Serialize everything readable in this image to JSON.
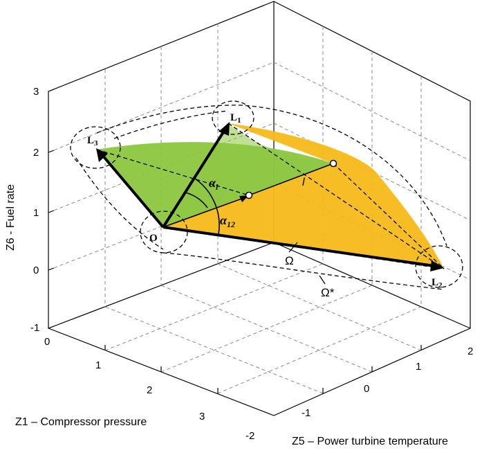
{
  "axes": {
    "z_label": "Z6 - Fuel rate",
    "x_label": "Z1 – Compressor pressure",
    "y_label": "Z5 – Power turbine  temperature",
    "z_ticks": [
      "3",
      "2",
      "1",
      "0",
      "-1"
    ],
    "x_ticks": [
      "0",
      "1",
      "2",
      "3"
    ],
    "y_ticks": [
      "-2",
      "-1",
      "0",
      "1",
      "2"
    ]
  },
  "labels": {
    "origin": "O",
    "L1": "L",
    "L1_sub": "1",
    "L2": "L",
    "L2_sub": "2",
    "L3": "L",
    "L3_sub": "3",
    "alpha_l": "α",
    "alpha_l_sub": "l",
    "alpha_12": "α",
    "alpha_12_sub": "12",
    "l": "l",
    "omega": "Ω",
    "omega_star": "Ω*"
  },
  "colors": {
    "green_region": "#8cc63f",
    "yellow_region": "#f7b918",
    "grid": "#8a8a8a",
    "ink": "#000000"
  }
}
